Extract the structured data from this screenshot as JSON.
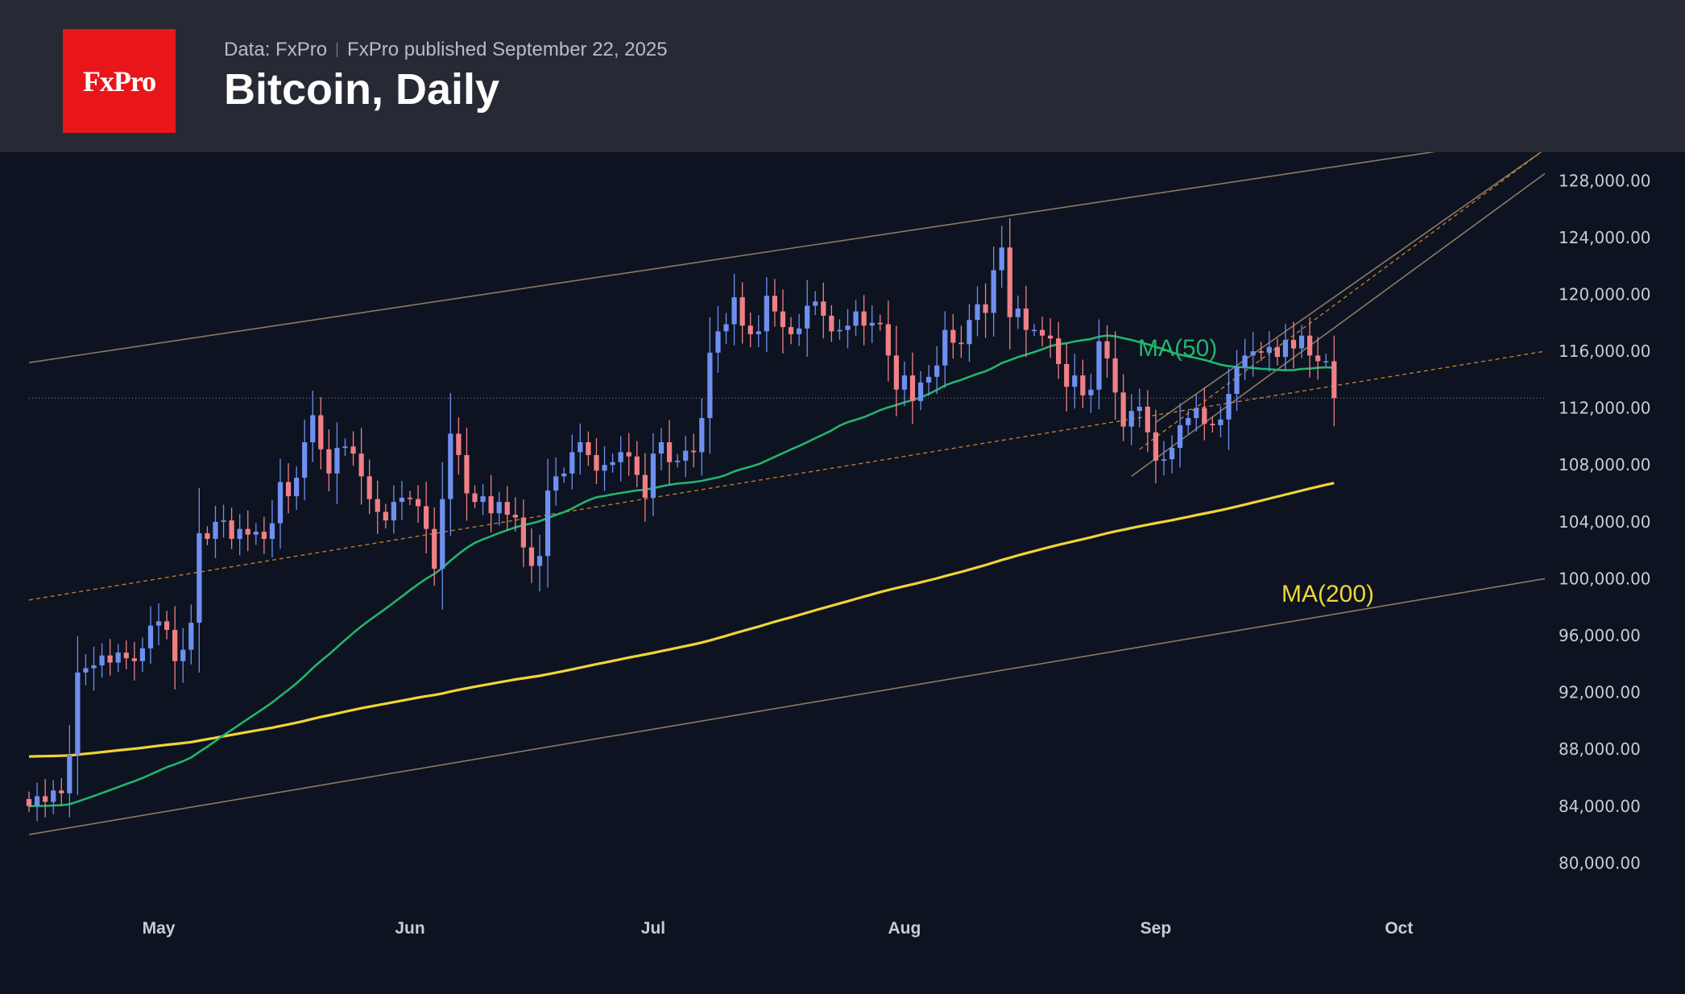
{
  "header": {
    "logo_text": "FxPro",
    "source": "Data: FxPro",
    "published": "FxPro published September 22, 2025",
    "title": "Bitcoin, Daily"
  },
  "colors": {
    "background": "#0d1320",
    "header_bg": "#272a34",
    "logo_bg": "#e8161b",
    "candle_up": "#6f8ff0",
    "candle_down": "#f07f86",
    "ma50": "#22b56e",
    "ma200": "#f1d437",
    "channel": "#8c7a63",
    "dashed": "#c07a2a"
  },
  "chart_data": {
    "type": "candlestick",
    "title": "Bitcoin, Daily",
    "x_range": [
      "2025-04-15",
      "2025-10-19"
    ],
    "y_range": [
      79000,
      130000
    ],
    "y_ticks": [
      "80,000.00",
      "84,000.00",
      "88,000.00",
      "92,000.00",
      "96,000.00",
      "100,000.00",
      "104,000.00",
      "108,000.00",
      "112,000.00",
      "116,000.00",
      "120,000.00",
      "124,000.00",
      "128,000.00"
    ],
    "y_tick_values": [
      80000,
      84000,
      88000,
      92000,
      96000,
      100000,
      104000,
      108000,
      112000,
      116000,
      120000,
      124000,
      128000
    ],
    "x_ticks": [
      {
        "label": "May",
        "date": "2025-05-01"
      },
      {
        "label": "Jun",
        "date": "2025-06-01"
      },
      {
        "label": "Jul",
        "date": "2025-07-01"
      },
      {
        "label": "Aug",
        "date": "2025-08-01"
      },
      {
        "label": "Sep",
        "date": "2025-09-01"
      },
      {
        "label": "Oct",
        "date": "2025-10-01"
      }
    ],
    "grid": false,
    "current_price_line": 112700,
    "close_series": {
      "start_date": "2025-04-15",
      "open_first": 84500,
      "closes": [
        84000,
        84700,
        84300,
        85100,
        84900,
        87600,
        93400,
        93700,
        93900,
        94600,
        94100,
        94800,
        94400,
        94200,
        95100,
        96700,
        97000,
        96400,
        94200,
        95000,
        96900,
        103200,
        102800,
        104000,
        104100,
        102800,
        103500,
        103100,
        103300,
        102800,
        103900,
        106800,
        105800,
        107100,
        109600,
        111500,
        109100,
        107400,
        109200,
        109300,
        108800,
        107200,
        105600,
        104700,
        104100,
        105400,
        105700,
        105600,
        105100,
        103500,
        100700,
        105600,
        110200,
        108700,
        106000,
        105400,
        105800,
        104600,
        105400,
        104500,
        104300,
        102200,
        100900,
        101600,
        106200,
        107200,
        107400,
        108900,
        109600,
        108700,
        107600,
        108000,
        108200,
        108900,
        108600,
        107300,
        105700,
        108800,
        109600,
        108200,
        108300,
        109000,
        108900,
        111300,
        115900,
        117400,
        117900,
        119800,
        117800,
        117200,
        117400,
        119900,
        118800,
        117700,
        117200,
        117600,
        119200,
        119500,
        118500,
        117400,
        117500,
        117800,
        118800,
        117800,
        118000,
        117900,
        115700,
        113300,
        114300,
        112500,
        113800,
        114200,
        115000,
        117500,
        116600,
        116500,
        118200,
        119300,
        118700,
        121700,
        123300,
        118400,
        119000,
        117500,
        117500,
        117100,
        116900,
        115100,
        113500,
        114300,
        112900,
        113300,
        116700,
        115500,
        113100,
        110700,
        111800,
        112100,
        110300,
        108300,
        108400,
        109200,
        110800,
        111300,
        112000,
        110900,
        110800,
        111200,
        113000,
        114900,
        115700,
        116000,
        115900,
        116300,
        115600,
        116800,
        116200,
        117100,
        115700,
        115300,
        115300,
        112700
      ]
    },
    "series": [
      {
        "name": "MA(50)"
      },
      {
        "name": "MA(200)"
      }
    ],
    "annotations": {
      "long_channel": {
        "upper": [
          [
            "2025-04-15",
            115200
          ],
          [
            "2025-10-19",
            131200
          ]
        ],
        "lower": [
          [
            "2025-04-15",
            82000
          ],
          [
            "2025-10-19",
            100000
          ]
        ],
        "mid_dashed": [
          [
            "2025-04-15",
            98500
          ],
          [
            "2025-10-19",
            116000
          ]
        ]
      },
      "short_channel": {
        "upper": [
          [
            "2025-09-01",
            111000
          ],
          [
            "2025-10-19",
            130200
          ]
        ],
        "lower": [
          [
            "2025-08-29",
            107200
          ],
          [
            "2025-10-19",
            128500
          ]
        ],
        "mid_dashed": [
          [
            "2025-08-30",
            109100
          ],
          [
            "2025-10-19",
            130200
          ]
        ]
      }
    }
  }
}
